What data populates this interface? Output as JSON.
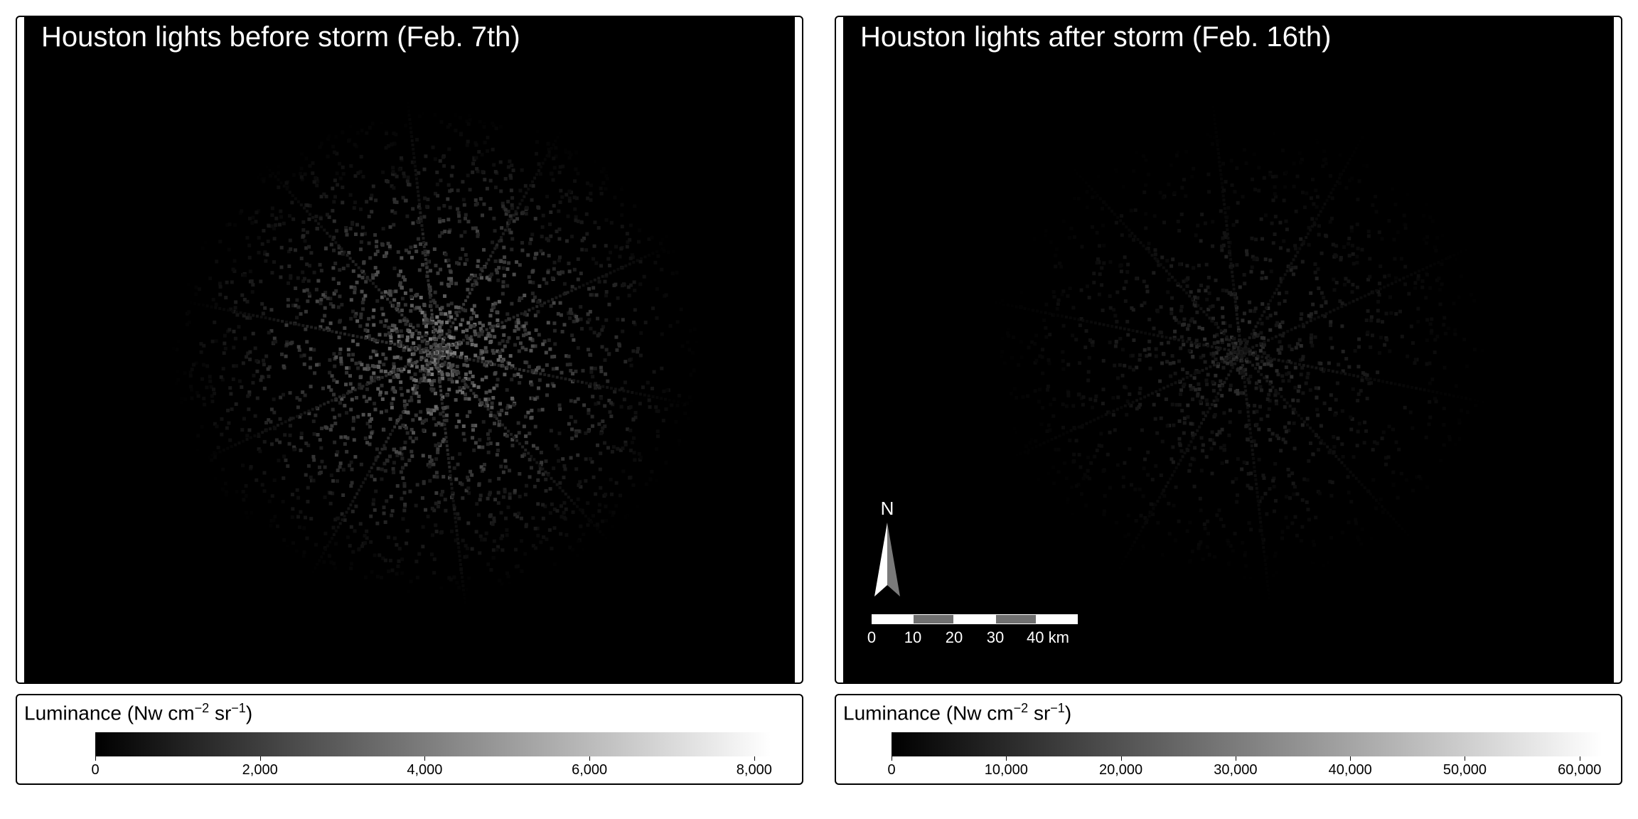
{
  "maps": {
    "left": {
      "title": "Houston lights before storm (Feb. 7th)"
    },
    "right": {
      "title": "Houston lights after storm (Feb. 16th)"
    }
  },
  "north_arrow": {
    "label": "N"
  },
  "scale_bar": {
    "labels": [
      "0",
      "10",
      "20",
      "30",
      "40 km"
    ]
  },
  "legends": {
    "left": {
      "title_prefix": "Luminance (Nw cm",
      "exp1": "−2",
      "mid": " sr",
      "exp2": "−1",
      "suffix": ")",
      "tick_labels": [
        "0",
        "2,000",
        "4,000",
        "6,000",
        "8,000"
      ],
      "tick_values": [
        0,
        2000,
        4000,
        6000,
        8000
      ],
      "max": 8200
    },
    "right": {
      "title_prefix": "Luminance (Nw cm",
      "exp1": "−2",
      "mid": " sr",
      "exp2": "−1",
      "suffix": ")",
      "tick_labels": [
        "0",
        "10,000",
        "20,000",
        "30,000",
        "40,000",
        "50,000",
        "60,000"
      ],
      "tick_values": [
        0,
        10000,
        20000,
        30000,
        40000,
        50000,
        60000
      ],
      "max": 62000
    }
  },
  "colors": {
    "background": "#000000",
    "panel_border": "#000000",
    "scale_dark": "#707070",
    "scale_light": "#ffffff"
  }
}
